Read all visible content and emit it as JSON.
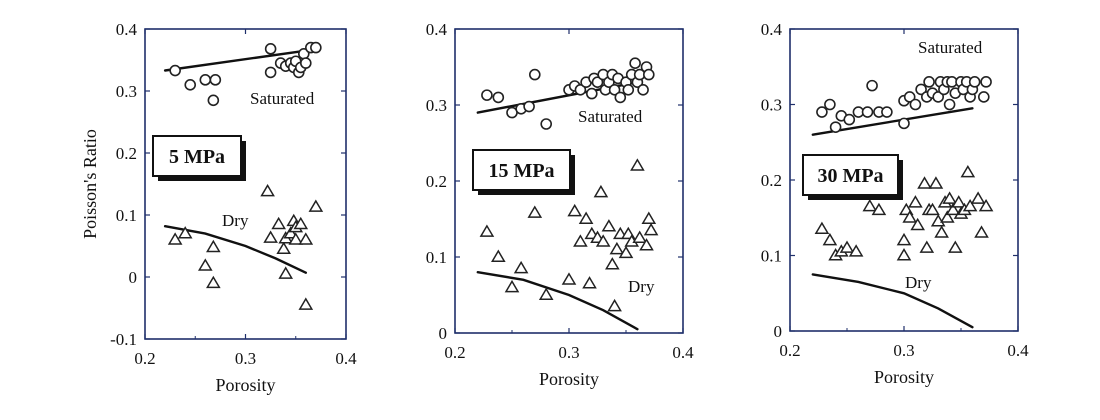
{
  "chart_data": [
    {
      "type": "scatter",
      "title": "",
      "xlabel": "Porosity",
      "ylabel": "Poisson's Ratio",
      "xlim": [
        0.2,
        0.4
      ],
      "ylim": [
        -0.1,
        0.4
      ],
      "x_ticks": [
        "0.2",
        "0.3",
        "0.4"
      ],
      "y_ticks": [
        "-0.1",
        "0",
        "0.1",
        "0.2",
        "0.3",
        "0.4"
      ],
      "pressure_label": "5 MPa",
      "annotations": {
        "saturated": "Saturated",
        "dry": "Dry"
      },
      "series": [
        {
          "marker": "circle",
          "points": [
            [
              0.23,
              0.333
            ],
            [
              0.245,
              0.31
            ],
            [
              0.26,
              0.318
            ],
            [
              0.27,
              0.318
            ],
            [
              0.268,
              0.285
            ],
            [
              0.325,
              0.368
            ],
            [
              0.325,
              0.33
            ],
            [
              0.335,
              0.345
            ],
            [
              0.34,
              0.34
            ],
            [
              0.345,
              0.345
            ],
            [
              0.348,
              0.338
            ],
            [
              0.35,
              0.348
            ],
            [
              0.353,
              0.33
            ],
            [
              0.355,
              0.338
            ],
            [
              0.358,
              0.36
            ],
            [
              0.36,
              0.345
            ],
            [
              0.365,
              0.37
            ],
            [
              0.37,
              0.37
            ]
          ]
        },
        {
          "marker": "triangle",
          "points": [
            [
              0.23,
              0.06
            ],
            [
              0.24,
              0.07
            ],
            [
              0.26,
              0.018
            ],
            [
              0.268,
              0.048
            ],
            [
              0.268,
              -0.01
            ],
            [
              0.322,
              0.138
            ],
            [
              0.325,
              0.063
            ],
            [
              0.333,
              0.085
            ],
            [
              0.338,
              0.045
            ],
            [
              0.34,
              0.005
            ],
            [
              0.34,
              0.062
            ],
            [
              0.345,
              0.07
            ],
            [
              0.348,
              0.09
            ],
            [
              0.35,
              0.08
            ],
            [
              0.35,
              0.06
            ],
            [
              0.355,
              0.085
            ],
            [
              0.36,
              0.06
            ],
            [
              0.36,
              -0.045
            ],
            [
              0.37,
              0.113
            ]
          ]
        }
      ],
      "fit_lines": [
        {
          "points": [
            [
              0.22,
              0.333
            ],
            [
              0.36,
              0.365
            ]
          ]
        },
        {
          "points": [
            [
              0.22,
              0.082
            ],
            [
              0.26,
              0.07
            ],
            [
              0.3,
              0.05
            ],
            [
              0.33,
              0.03
            ],
            [
              0.36,
              0.007
            ]
          ]
        }
      ]
    },
    {
      "type": "scatter",
      "title": "",
      "xlabel": "Porosity",
      "ylabel": "",
      "xlim": [
        0.2,
        0.4
      ],
      "ylim": [
        0,
        0.4
      ],
      "x_ticks": [
        "0.2",
        "0.3",
        "0.4"
      ],
      "y_ticks": [
        "0",
        "0.1",
        "0.2",
        "0.3",
        "0.4"
      ],
      "pressure_label": "15 MPa",
      "annotations": {
        "saturated": "Saturated",
        "dry": "Dry"
      },
      "series": [
        {
          "marker": "circle",
          "points": [
            [
              0.228,
              0.313
            ],
            [
              0.238,
              0.31
            ],
            [
              0.25,
              0.29
            ],
            [
              0.258,
              0.295
            ],
            [
              0.265,
              0.298
            ],
            [
              0.27,
              0.34
            ],
            [
              0.28,
              0.275
            ],
            [
              0.3,
              0.32
            ],
            [
              0.305,
              0.325
            ],
            [
              0.31,
              0.32
            ],
            [
              0.315,
              0.33
            ],
            [
              0.32,
              0.315
            ],
            [
              0.322,
              0.335
            ],
            [
              0.325,
              0.33
            ],
            [
              0.33,
              0.34
            ],
            [
              0.332,
              0.32
            ],
            [
              0.335,
              0.33
            ],
            [
              0.338,
              0.34
            ],
            [
              0.34,
              0.32
            ],
            [
              0.343,
              0.335
            ],
            [
              0.345,
              0.31
            ],
            [
              0.35,
              0.33
            ],
            [
              0.352,
              0.32
            ],
            [
              0.355,
              0.34
            ],
            [
              0.358,
              0.355
            ],
            [
              0.36,
              0.33
            ],
            [
              0.362,
              0.34
            ],
            [
              0.365,
              0.32
            ],
            [
              0.368,
              0.35
            ],
            [
              0.37,
              0.34
            ]
          ]
        },
        {
          "marker": "triangle",
          "points": [
            [
              0.228,
              0.133
            ],
            [
              0.238,
              0.1
            ],
            [
              0.25,
              0.06
            ],
            [
              0.258,
              0.085
            ],
            [
              0.27,
              0.158
            ],
            [
              0.28,
              0.05
            ],
            [
              0.3,
              0.07
            ],
            [
              0.305,
              0.16
            ],
            [
              0.31,
              0.12
            ],
            [
              0.315,
              0.15
            ],
            [
              0.318,
              0.065
            ],
            [
              0.32,
              0.13
            ],
            [
              0.325,
              0.125
            ],
            [
              0.328,
              0.185
            ],
            [
              0.33,
              0.12
            ],
            [
              0.335,
              0.14
            ],
            [
              0.338,
              0.09
            ],
            [
              0.34,
              0.035
            ],
            [
              0.342,
              0.11
            ],
            [
              0.345,
              0.13
            ],
            [
              0.35,
              0.105
            ],
            [
              0.352,
              0.13
            ],
            [
              0.355,
              0.12
            ],
            [
              0.36,
              0.22
            ],
            [
              0.362,
              0.125
            ],
            [
              0.368,
              0.115
            ],
            [
              0.37,
              0.15
            ],
            [
              0.372,
              0.135
            ]
          ]
        }
      ],
      "fit_lines": [
        {
          "points": [
            [
              0.22,
              0.29
            ],
            [
              0.36,
              0.33
            ]
          ]
        },
        {
          "points": [
            [
              0.22,
              0.08
            ],
            [
              0.26,
              0.07
            ],
            [
              0.3,
              0.05
            ],
            [
              0.33,
              0.03
            ],
            [
              0.36,
              0.005
            ]
          ]
        }
      ]
    },
    {
      "type": "scatter",
      "title": "",
      "xlabel": "Porosity",
      "ylabel": "",
      "xlim": [
        0.2,
        0.4
      ],
      "ylim": [
        0,
        0.4
      ],
      "x_ticks": [
        "0.2",
        "0.3",
        "0.4"
      ],
      "y_ticks": [
        "0",
        "0.1",
        "0.2",
        "0.3",
        "0.4"
      ],
      "pressure_label": "30 MPa",
      "annotations": {
        "saturated": "Saturated",
        "dry": "Dry"
      },
      "series": [
        {
          "marker": "circle",
          "points": [
            [
              0.228,
              0.29
            ],
            [
              0.235,
              0.3
            ],
            [
              0.24,
              0.27
            ],
            [
              0.245,
              0.285
            ],
            [
              0.252,
              0.28
            ],
            [
              0.26,
              0.29
            ],
            [
              0.268,
              0.29
            ],
            [
              0.272,
              0.325
            ],
            [
              0.278,
              0.29
            ],
            [
              0.285,
              0.29
            ],
            [
              0.3,
              0.275
            ],
            [
              0.3,
              0.305
            ],
            [
              0.305,
              0.31
            ],
            [
              0.31,
              0.3
            ],
            [
              0.315,
              0.32
            ],
            [
              0.32,
              0.31
            ],
            [
              0.322,
              0.33
            ],
            [
              0.325,
              0.315
            ],
            [
              0.33,
              0.31
            ],
            [
              0.332,
              0.33
            ],
            [
              0.335,
              0.32
            ],
            [
              0.338,
              0.33
            ],
            [
              0.34,
              0.3
            ],
            [
              0.342,
              0.33
            ],
            [
              0.345,
              0.315
            ],
            [
              0.35,
              0.33
            ],
            [
              0.352,
              0.32
            ],
            [
              0.355,
              0.33
            ],
            [
              0.358,
              0.31
            ],
            [
              0.36,
              0.32
            ],
            [
              0.362,
              0.33
            ],
            [
              0.37,
              0.31
            ],
            [
              0.372,
              0.33
            ]
          ]
        },
        {
          "marker": "triangle",
          "points": [
            [
              0.228,
              0.135
            ],
            [
              0.235,
              0.12
            ],
            [
              0.24,
              0.1
            ],
            [
              0.245,
              0.105
            ],
            [
              0.25,
              0.11
            ],
            [
              0.258,
              0.105
            ],
            [
              0.27,
              0.165
            ],
            [
              0.278,
              0.16
            ],
            [
              0.3,
              0.1
            ],
            [
              0.3,
              0.12
            ],
            [
              0.302,
              0.16
            ],
            [
              0.305,
              0.15
            ],
            [
              0.31,
              0.17
            ],
            [
              0.312,
              0.14
            ],
            [
              0.318,
              0.195
            ],
            [
              0.32,
              0.11
            ],
            [
              0.322,
              0.16
            ],
            [
              0.325,
              0.16
            ],
            [
              0.328,
              0.195
            ],
            [
              0.33,
              0.145
            ],
            [
              0.333,
              0.13
            ],
            [
              0.336,
              0.17
            ],
            [
              0.338,
              0.15
            ],
            [
              0.34,
              0.175
            ],
            [
              0.343,
              0.16
            ],
            [
              0.345,
              0.11
            ],
            [
              0.348,
              0.17
            ],
            [
              0.35,
              0.155
            ],
            [
              0.353,
              0.16
            ],
            [
              0.356,
              0.21
            ],
            [
              0.358,
              0.165
            ],
            [
              0.365,
              0.175
            ],
            [
              0.368,
              0.13
            ],
            [
              0.372,
              0.165
            ]
          ]
        }
      ],
      "fit_lines": [
        {
          "points": [
            [
              0.22,
              0.26
            ],
            [
              0.36,
              0.295
            ]
          ]
        },
        {
          "points": [
            [
              0.22,
              0.075
            ],
            [
              0.26,
              0.065
            ],
            [
              0.3,
              0.05
            ],
            [
              0.33,
              0.03
            ],
            [
              0.36,
              0.005
            ]
          ]
        }
      ]
    }
  ]
}
